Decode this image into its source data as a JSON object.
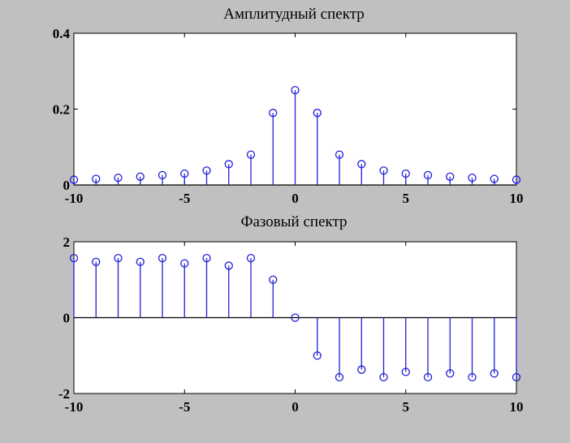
{
  "figure": {
    "background": "#c0c0c0",
    "stem_color": "#1f1fd6"
  },
  "chart_data": [
    {
      "type": "stem",
      "title": "Амплитудный спектр",
      "xlabel": "",
      "ylabel": "",
      "xlim": [
        -10,
        10
      ],
      "ylim": [
        0,
        0.4
      ],
      "xticks": [
        -10,
        -5,
        0,
        5,
        10
      ],
      "xtick_labels": [
        "-10",
        "-5",
        "0",
        "5",
        "10"
      ],
      "yticks": [
        0,
        0.2,
        0.4
      ],
      "ytick_labels": [
        "0",
        "0.2",
        "0.4"
      ],
      "grid": false,
      "baseline": 0,
      "series": [
        {
          "x": [
            -10,
            -9,
            -8,
            -7,
            -6,
            -5,
            -4,
            -3,
            -2,
            -1,
            0,
            1,
            2,
            3,
            4,
            5,
            6,
            7,
            8,
            9,
            10
          ],
          "y": [
            0.014,
            0.016,
            0.019,
            0.022,
            0.026,
            0.03,
            0.038,
            0.055,
            0.08,
            0.19,
            0.25,
            0.19,
            0.08,
            0.055,
            0.038,
            0.03,
            0.026,
            0.022,
            0.019,
            0.016,
            0.014
          ]
        }
      ]
    },
    {
      "type": "stem",
      "title": "Фазовый спектр",
      "xlabel": "",
      "ylabel": "",
      "xlim": [
        -10,
        10
      ],
      "ylim": [
        -2,
        2
      ],
      "xticks": [
        -10,
        -5,
        0,
        5,
        10
      ],
      "xtick_labels": [
        "-10",
        "-5",
        "0",
        "5",
        "10"
      ],
      "yticks": [
        -2,
        0,
        2
      ],
      "ytick_labels": [
        "-2",
        "0",
        "2"
      ],
      "grid": false,
      "baseline": 0,
      "series": [
        {
          "x": [
            -10,
            -9,
            -8,
            -7,
            -6,
            -5,
            -4,
            -3,
            -2,
            -1,
            0,
            1,
            2,
            3,
            4,
            5,
            6,
            7,
            8,
            9,
            10
          ],
          "y": [
            1.57,
            1.47,
            1.57,
            1.47,
            1.57,
            1.43,
            1.57,
            1.37,
            1.57,
            1.0,
            0,
            -1.0,
            -1.57,
            -1.37,
            -1.57,
            -1.43,
            -1.57,
            -1.47,
            -1.57,
            -1.47,
            -1.57
          ]
        }
      ]
    }
  ]
}
